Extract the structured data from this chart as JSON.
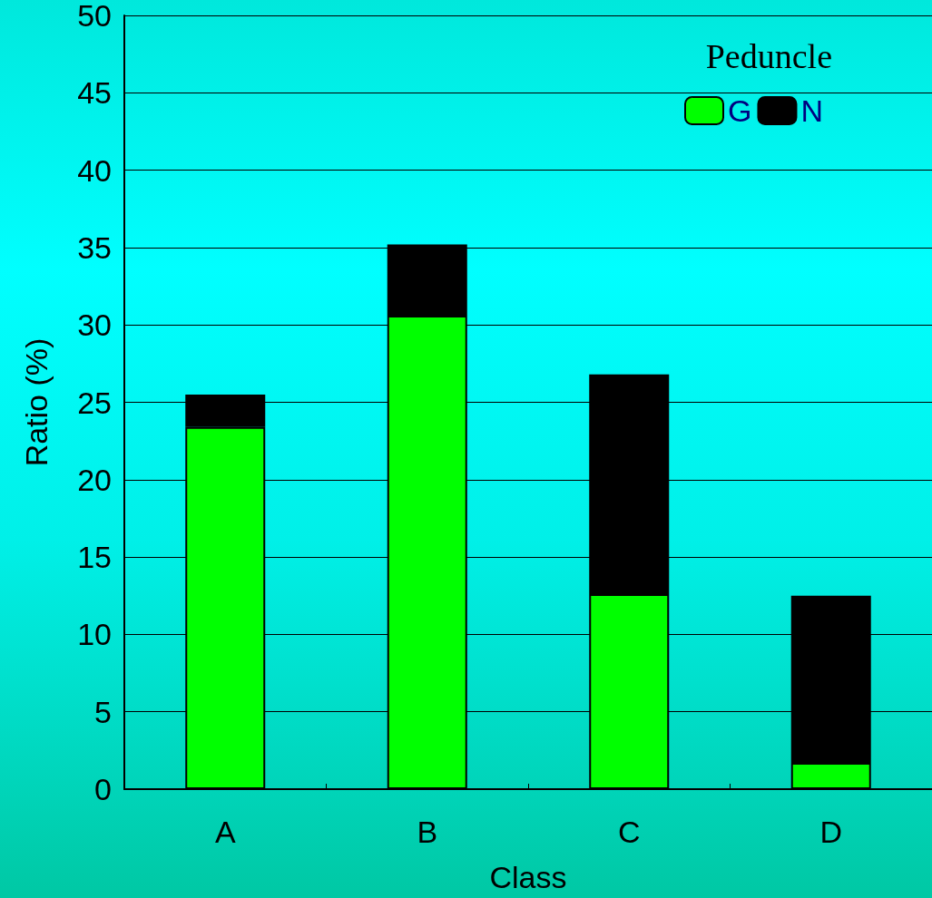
{
  "chart_data": {
    "type": "bar",
    "xlabel": "Class",
    "ylabel": "Ratio (%)",
    "legend_title": "Peduncle",
    "categories": [
      "A",
      "B",
      "C",
      "D"
    ],
    "series": [
      {
        "name": "G",
        "color": "#00ff00",
        "values": [
          23.4,
          30.6,
          12.6,
          1.7
        ]
      },
      {
        "name": "N",
        "color": "#000000",
        "values": [
          2.1,
          4.6,
          14.2,
          10.8
        ]
      }
    ],
    "stacked": true,
    "ylim": [
      0,
      50
    ],
    "yticks": [
      0,
      5,
      10,
      15,
      20,
      25,
      30,
      35,
      40,
      45,
      50
    ],
    "grid": "y",
    "legend": "top right"
  }
}
